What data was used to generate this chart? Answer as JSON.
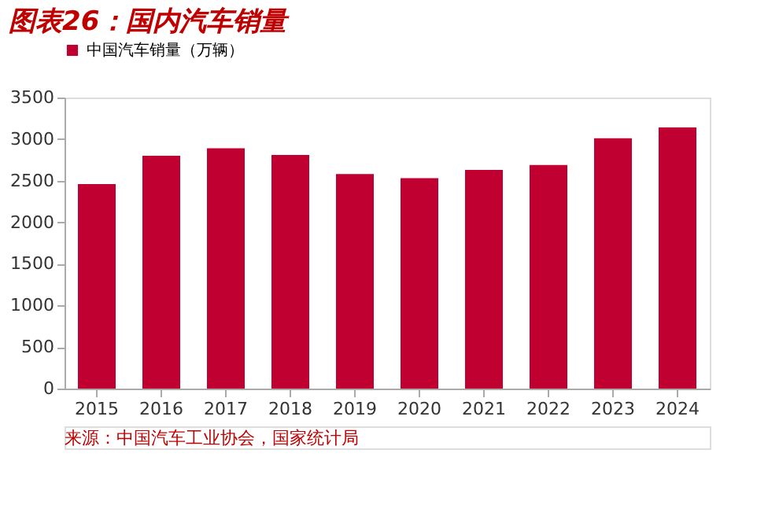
{
  "chart_data": {
    "type": "bar",
    "title": "图表26：国内汽车销量",
    "categories": [
      "2015",
      "2016",
      "2017",
      "2018",
      "2019",
      "2020",
      "2021",
      "2022",
      "2023",
      "2024"
    ],
    "series": [
      {
        "name": "中国汽车销量（万辆）",
        "color": "#c00030",
        "values": [
          2460,
          2800,
          2890,
          2810,
          2580,
          2530,
          2630,
          2690,
          3010,
          3140
        ]
      }
    ],
    "ylim": [
      0,
      3500
    ],
    "yticks": [
      0,
      500,
      1000,
      1500,
      2000,
      2500,
      3000,
      3500
    ],
    "grid": false,
    "legend": "top",
    "annotations": [
      "来源：中国汽车工业协会，国家统计局"
    ]
  }
}
